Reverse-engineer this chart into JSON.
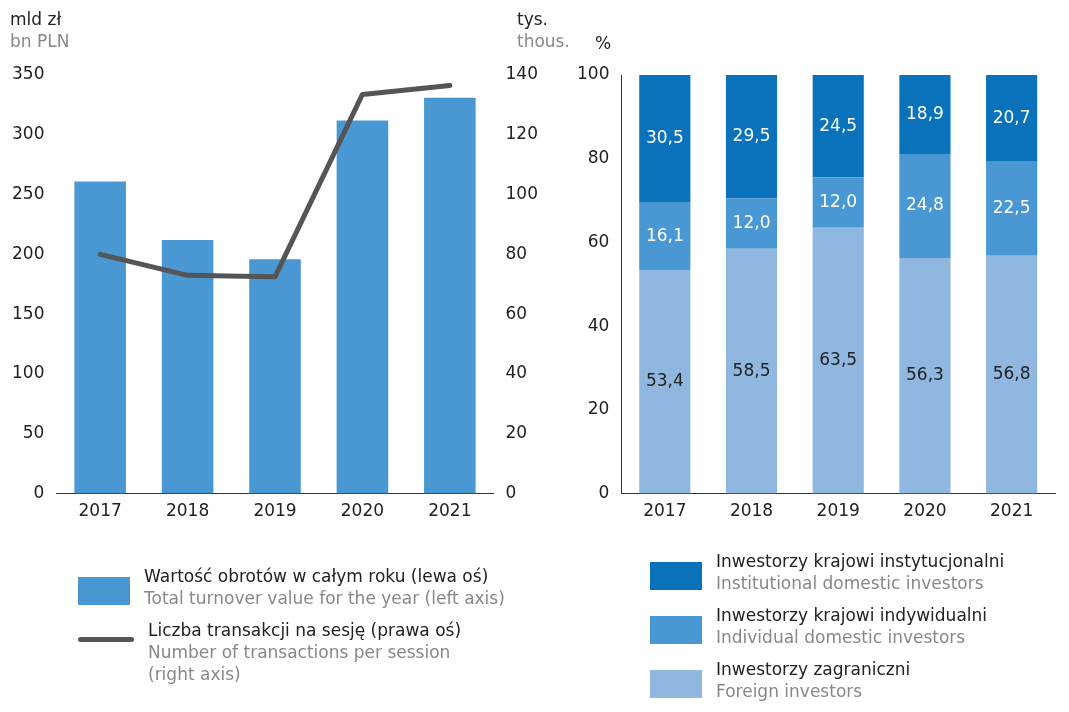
{
  "chart_data": [
    {
      "type": "bar",
      "categories": [
        "2017",
        "2018",
        "2019",
        "2020",
        "2021"
      ],
      "ylabel": "mld zł\nbn PLN",
      "y2label": "tys.\nthous.",
      "ylim": [
        0,
        350
      ],
      "yticks": [
        0,
        50,
        100,
        150,
        200,
        250,
        300,
        350
      ],
      "y2lim": [
        0,
        140
      ],
      "y2ticks": [
        0,
        20,
        40,
        60,
        80,
        100,
        120,
        140
      ],
      "grid": false,
      "legend": "bottom",
      "series": [
        {
          "name": "Wartość obrotów w całym roku (lewa oś)\nTotal turnover value for the year (left axis)",
          "color": "#4a98d3",
          "values": [
            261,
            212,
            196,
            312,
            331
          ]
        },
        {
          "name": "Liczba transakcji na sesję (prawa oś)\nNumber of transactions per session\n(right axis)",
          "type": "line",
          "axis": "y2",
          "color": "#555555",
          "marker": "none",
          "values": [
            80,
            73,
            72.5,
            133.5,
            136.5
          ]
        }
      ]
    },
    {
      "type": "bar",
      "stacked": true,
      "categories": [
        "2017",
        "2018",
        "2019",
        "2020",
        "2021"
      ],
      "ylabel": "%",
      "ylim": [
        0,
        100
      ],
      "yticks": [
        0,
        20,
        40,
        60,
        80,
        100
      ],
      "grid": false,
      "legend": "bottom",
      "series": [
        {
          "name": "Inwestorzy zagraniczni\nForeign investors",
          "color": "#8fb7df",
          "values": [
            53.4,
            58.5,
            63.5,
            56.3,
            56.8
          ],
          "value_labels": [
            "53,4",
            "58,5",
            "63,5",
            "56,3",
            "56,8"
          ]
        },
        {
          "name": "Inwestorzy krajowi indywidualni\nIndividual domestic investors",
          "color": "#4a98d3",
          "values": [
            16.1,
            12.0,
            12.0,
            24.8,
            22.5
          ],
          "value_labels": [
            "16,1",
            "12,0",
            "12,0",
            "24,8",
            "22,5"
          ]
        },
        {
          "name": "Inwestorzy krajowi instytucjonalni\nInstitutional domestic investors",
          "color": "#0a72bb",
          "values": [
            30.5,
            29.5,
            24.5,
            18.9,
            20.7
          ],
          "value_labels": [
            "30,5",
            "29,5",
            "24,5",
            "18,9",
            "20,7"
          ]
        }
      ]
    }
  ]
}
